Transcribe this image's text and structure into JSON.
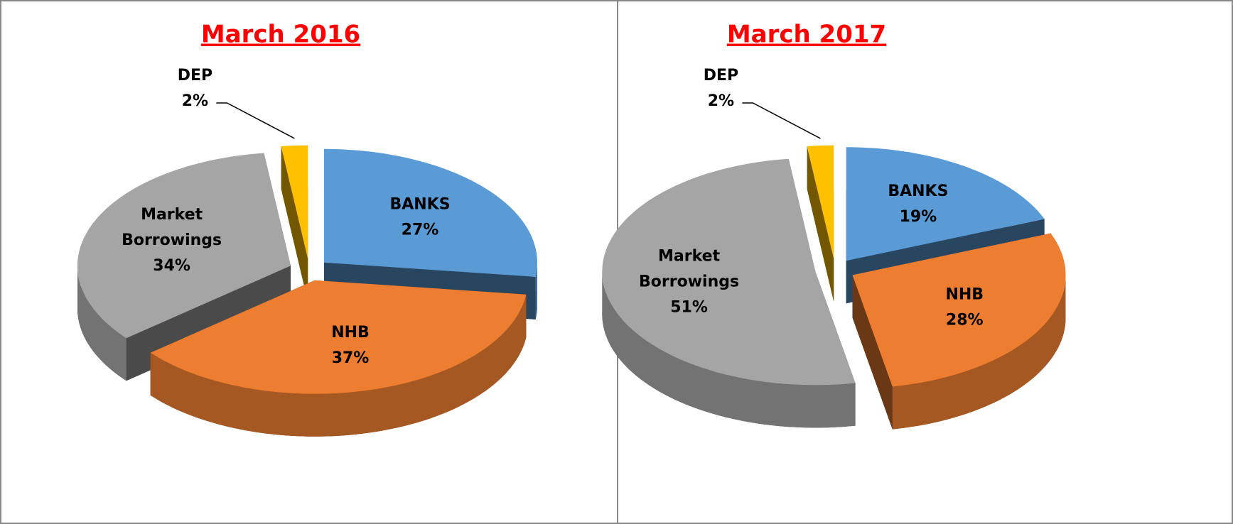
{
  "chart_data": [
    {
      "type": "pie",
      "title": "March 2016",
      "categories": [
        "BANKS",
        "NHB",
        "Market Borrowings",
        "DEP"
      ],
      "values": [
        27,
        37,
        34,
        2
      ],
      "value_labels": [
        "27%",
        "37%",
        "34%",
        "2%"
      ],
      "colors": [
        "#5b9bd5",
        "#ed7d31",
        "#a5a5a5",
        "#ffc000"
      ]
    },
    {
      "type": "pie",
      "title": "March 2017",
      "categories": [
        "BANKS",
        "NHB",
        "Market Borrowings",
        "DEP"
      ],
      "values": [
        19,
        28,
        51,
        2
      ],
      "value_labels": [
        "19%",
        "28%",
        "51%",
        "2%"
      ],
      "colors": [
        "#5b9bd5",
        "#ed7d31",
        "#a5a5a5",
        "#ffc000"
      ]
    }
  ]
}
